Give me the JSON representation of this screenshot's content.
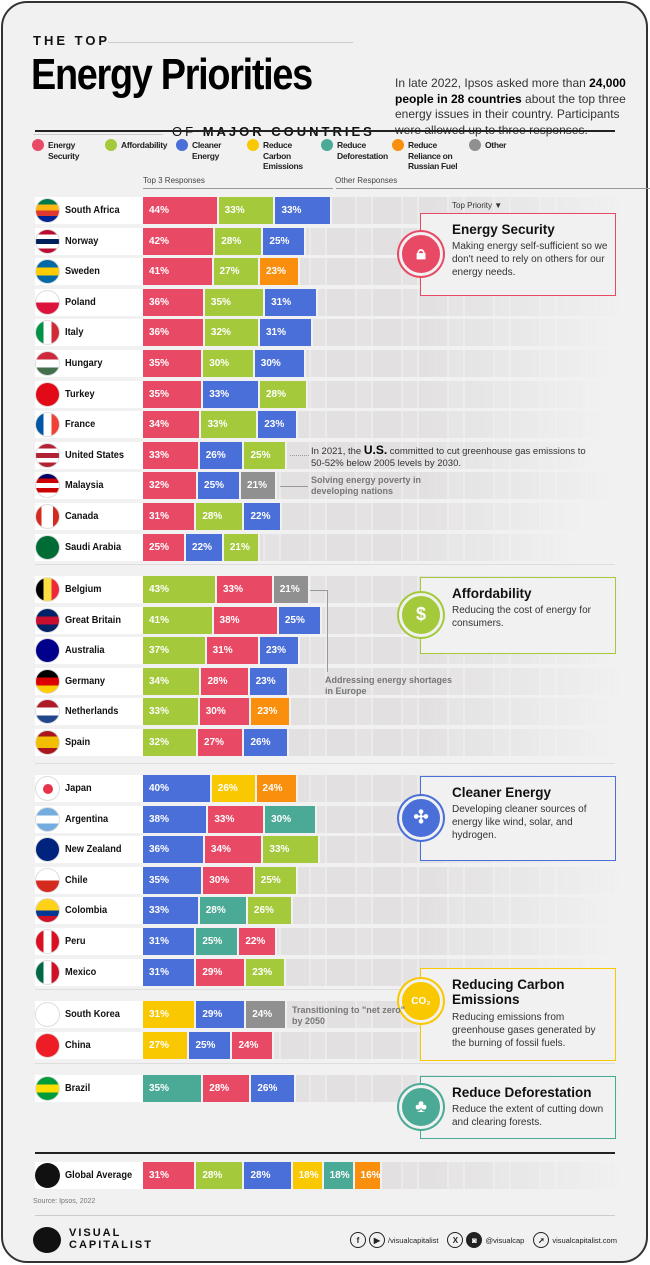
{
  "header": {
    "kicker": "THE TOP",
    "title": "Energy Priorities",
    "subtitle_prefix": "OF",
    "subtitle": "MAJOR COUNTRIES",
    "intro_1": "In late 2022, Ipsos asked more than ",
    "intro_b": "24,000 people in 28 countries",
    "intro_2": " about the top three energy issues in their country. Participants were allowed up to three responses."
  },
  "legend": [
    {
      "key": "security",
      "label": "Energy Security",
      "color": "#E84A66"
    },
    {
      "key": "afford",
      "label": "Affordability",
      "color": "#A4C93B"
    },
    {
      "key": "cleaner",
      "label": "Cleaner Energy",
      "color": "#4A6FD8"
    },
    {
      "key": "carbon",
      "label": "Reduce Carbon Emissions",
      "color": "#F9C800"
    },
    {
      "key": "defor",
      "label": "Reduce Deforestation",
      "color": "#4AAA96"
    },
    {
      "key": "russia",
      "label": "Reduce Reliance on Russian Fuel",
      "color": "#F98F0C"
    },
    {
      "key": "other",
      "label": "Other",
      "color": "#909090"
    }
  ],
  "columns": {
    "top3": "Top 3 Responses",
    "other": "Other Responses",
    "top_priority": "Top Priority ▼"
  },
  "chart_data": {
    "type": "bar",
    "stacked": true,
    "unit": "%",
    "groups": [
      {
        "priority": "Energy Security",
        "rows": [
          {
            "country": "South Africa",
            "flag": [
              "#007A4D",
              "#FFB612",
              "#DE3831",
              "#002395"
            ],
            "values": [
              [
                "security",
                44
              ],
              [
                "afford",
                33
              ],
              [
                "cleaner",
                33
              ]
            ]
          },
          {
            "country": "Norway",
            "flag": [
              "#BA0C2F",
              "#fff",
              "#00205B",
              "#fff",
              "#BA0C2F"
            ],
            "values": [
              [
                "security",
                42
              ],
              [
                "afford",
                28
              ],
              [
                "cleaner",
                25
              ]
            ]
          },
          {
            "country": "Sweden",
            "flag": [
              "#006AA7",
              "#FECC00",
              "#006AA7"
            ],
            "values": [
              [
                "security",
                41
              ],
              [
                "afford",
                27
              ],
              [
                "russia",
                23
              ]
            ]
          },
          {
            "country": "Poland",
            "flag": [
              "#fff",
              "#DC143C"
            ],
            "values": [
              [
                "security",
                36
              ],
              [
                "afford",
                35
              ],
              [
                "cleaner",
                31
              ]
            ]
          },
          {
            "country": "Italy",
            "flag": [
              "#009246",
              "#fff",
              "#CE2B37"
            ],
            "vertical": true,
            "values": [
              [
                "security",
                36
              ],
              [
                "afford",
                32
              ],
              [
                "cleaner",
                31
              ]
            ]
          },
          {
            "country": "Hungary",
            "flag": [
              "#CD2A3E",
              "#fff",
              "#436F4D"
            ],
            "values": [
              [
                "security",
                35
              ],
              [
                "afford",
                30
              ],
              [
                "cleaner",
                30
              ]
            ]
          },
          {
            "country": "Turkey",
            "flag": [
              "#E30A17",
              "#E30A17"
            ],
            "values": [
              [
                "security",
                35
              ],
              [
                "cleaner",
                33
              ],
              [
                "afford",
                28
              ]
            ]
          },
          {
            "country": "France",
            "flag": [
              "#0055A4",
              "#fff",
              "#EF4135"
            ],
            "vertical": true,
            "values": [
              [
                "security",
                34
              ],
              [
                "afford",
                33
              ],
              [
                "cleaner",
                23
              ]
            ]
          },
          {
            "country": "United States",
            "flag": [
              "#B22234",
              "#fff",
              "#B22234",
              "#fff",
              "#B22234"
            ],
            "values": [
              [
                "security",
                33
              ],
              [
                "cleaner",
                26
              ],
              [
                "afford",
                25
              ]
            ]
          },
          {
            "country": "Malaysia",
            "flag": [
              "#010066",
              "#CC0001",
              "#fff",
              "#CC0001",
              "#fff"
            ],
            "values": [
              [
                "security",
                32
              ],
              [
                "cleaner",
                25
              ],
              [
                "other",
                21
              ]
            ]
          },
          {
            "country": "Canada",
            "flag": [
              "#D52B1E",
              "#fff",
              "#fff",
              "#D52B1E"
            ],
            "vertical": true,
            "values": [
              [
                "security",
                31
              ],
              [
                "afford",
                28
              ],
              [
                "cleaner",
                22
              ]
            ]
          },
          {
            "country": "Saudi Arabia",
            "flag": [
              "#006C35",
              "#006C35"
            ],
            "values": [
              [
                "security",
                25
              ],
              [
                "cleaner",
                22
              ],
              [
                "afford",
                21
              ]
            ]
          }
        ]
      },
      {
        "priority": "Affordability",
        "rows": [
          {
            "country": "Belgium",
            "flag": [
              "#000",
              "#FAE042",
              "#ED2939"
            ],
            "vertical": true,
            "values": [
              [
                "afford",
                43
              ],
              [
                "security",
                33
              ],
              [
                "other",
                21
              ]
            ]
          },
          {
            "country": "Great Britain",
            "flag": [
              "#012169",
              "#C8102E",
              "#012169"
            ],
            "values": [
              [
                "afford",
                41
              ],
              [
                "security",
                38
              ],
              [
                "cleaner",
                25
              ]
            ]
          },
          {
            "country": "Australia",
            "flag": [
              "#00008B",
              "#00008B"
            ],
            "values": [
              [
                "afford",
                37
              ],
              [
                "security",
                31
              ],
              [
                "cleaner",
                23
              ]
            ]
          },
          {
            "country": "Germany",
            "flag": [
              "#000",
              "#DD0000",
              "#FFCE00"
            ],
            "values": [
              [
                "afford",
                34
              ],
              [
                "security",
                28
              ],
              [
                "cleaner",
                23
              ]
            ]
          },
          {
            "country": "Netherlands",
            "flag": [
              "#AE1C28",
              "#fff",
              "#21468B"
            ],
            "values": [
              [
                "afford",
                33
              ],
              [
                "security",
                30
              ],
              [
                "russia",
                23
              ]
            ]
          },
          {
            "country": "Spain",
            "flag": [
              "#AA151B",
              "#F1BF00",
              "#F1BF00",
              "#AA151B"
            ],
            "values": [
              [
                "afford",
                32
              ],
              [
                "security",
                27
              ],
              [
                "cleaner",
                26
              ]
            ]
          }
        ]
      },
      {
        "priority": "Cleaner Energy",
        "rows": [
          {
            "country": "Japan",
            "flag": [
              "#fff",
              "#fff"
            ],
            "values": [
              [
                "cleaner",
                40
              ],
              [
                "carbon",
                26
              ],
              [
                "russia",
                24
              ]
            ]
          },
          {
            "country": "Argentina",
            "flag": [
              "#74ACDF",
              "#fff",
              "#74ACDF"
            ],
            "values": [
              [
                "cleaner",
                38
              ],
              [
                "security",
                33
              ],
              [
                "defor",
                30
              ]
            ]
          },
          {
            "country": "New Zealand",
            "flag": [
              "#00247D",
              "#00247D"
            ],
            "values": [
              [
                "cleaner",
                36
              ],
              [
                "security",
                34
              ],
              [
                "afford",
                33
              ]
            ]
          },
          {
            "country": "Chile",
            "flag": [
              "#fff",
              "#D52B1E"
            ],
            "values": [
              [
                "cleaner",
                35
              ],
              [
                "security",
                30
              ],
              [
                "afford",
                25
              ]
            ]
          },
          {
            "country": "Colombia",
            "flag": [
              "#FCD116",
              "#FCD116",
              "#003893",
              "#CE1126"
            ],
            "values": [
              [
                "cleaner",
                33
              ],
              [
                "defor",
                28
              ],
              [
                "afford",
                26
              ]
            ]
          },
          {
            "country": "Peru",
            "flag": [
              "#D91023",
              "#fff",
              "#D91023"
            ],
            "vertical": true,
            "values": [
              [
                "cleaner",
                31
              ],
              [
                "defor",
                25
              ],
              [
                "security",
                22
              ]
            ]
          },
          {
            "country": "Mexico",
            "flag": [
              "#006847",
              "#fff",
              "#CE1126"
            ],
            "vertical": true,
            "values": [
              [
                "cleaner",
                31
              ],
              [
                "security",
                29
              ],
              [
                "afford",
                23
              ]
            ]
          }
        ]
      },
      {
        "priority": "Reducing Carbon Emissions",
        "rows": [
          {
            "country": "South Korea",
            "flag": [
              "#fff",
              "#fff"
            ],
            "values": [
              [
                "carbon",
                31
              ],
              [
                "cleaner",
                29
              ],
              [
                "other",
                24
              ]
            ]
          },
          {
            "country": "China",
            "flag": [
              "#EE1C25",
              "#EE1C25"
            ],
            "values": [
              [
                "carbon",
                27
              ],
              [
                "cleaner",
                25
              ],
              [
                "security",
                24
              ]
            ]
          }
        ]
      },
      {
        "priority": "Reduce Deforestation",
        "rows": [
          {
            "country": "Brazil",
            "flag": [
              "#009C3B",
              "#FFDF00",
              "#009C3B"
            ],
            "values": [
              [
                "defor",
                35
              ],
              [
                "security",
                28
              ],
              [
                "cleaner",
                26
              ]
            ]
          }
        ]
      }
    ],
    "global": {
      "country": "Global Average",
      "values": [
        [
          "security",
          31
        ],
        [
          "afford",
          28
        ],
        [
          "cleaner",
          28
        ],
        [
          "carbon",
          18
        ],
        [
          "defor",
          18
        ],
        [
          "russia",
          16
        ]
      ]
    }
  },
  "boxes": [
    {
      "title": "Energy Security",
      "text": "Making energy self-sufficient so we don't need to rely on others for our energy needs.",
      "color": "#E84A66",
      "icon": "lock-icon"
    },
    {
      "title": "Affordability",
      "text": "Reducing the cost of energy for consumers.",
      "color": "#A4C93B",
      "icon": "lightbulb-dollar-icon"
    },
    {
      "title": "Cleaner Energy",
      "text": "Developing cleaner sources of energy like wind, solar, and hydrogen.",
      "color": "#4A6FD8",
      "icon": "wind-turbine-icon"
    },
    {
      "title": "Reducing Carbon Emissions",
      "text": "Reducing emissions from greenhouse gases generated by the burning of fossil fuels.",
      "color": "#F9C800",
      "icon": "co2-icon"
    },
    {
      "title": "Reduce Deforestation",
      "text": "Reduce the extent of cutting down and clearing forests.",
      "color": "#4AAA96",
      "icon": "tree-icon"
    }
  ],
  "annotations": {
    "us_1": "In 2021, the ",
    "us_b": "U.S.",
    "us_2": " committed to cut greenhouse gas emissions to 50-52% below 2005 levels by 2030.",
    "malaysia": "Solving energy poverty in developing nations",
    "europe": "Addressing energy shortages in Europe",
    "korea": "Transitioning to \"net zero\" by 2050"
  },
  "footer": {
    "source": "Source: Ipsos, 2022",
    "logo_1": "VISUAL",
    "logo_2": "CAPITALIST",
    "handle_1": "/visualcapitalist",
    "handle_2": "@visualcap",
    "site": "visualcapitalist.com"
  }
}
